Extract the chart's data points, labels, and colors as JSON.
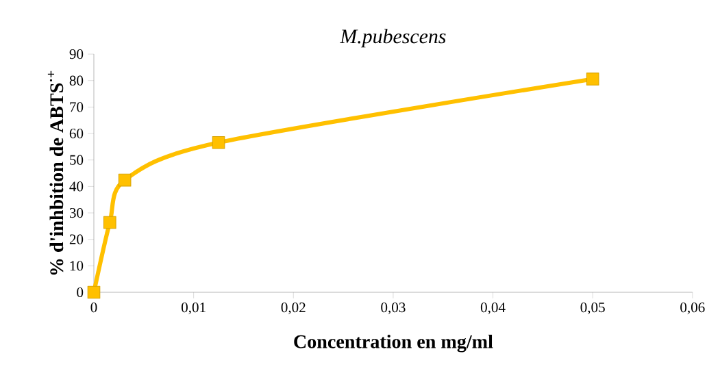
{
  "chart_data": {
    "type": "line",
    "title": "*M.pubescens*",
    "xlabel": "Concentration en mg/ml",
    "ylabel": "% d'inhbition de ABTS$^{·+}$",
    "x": [
      0,
      0.0016,
      0.0031,
      0.0125,
      0.05
    ],
    "series": [
      {
        "color": "#ffc000",
        "values": [
          0,
          26.4,
          42.4,
          56.6,
          80.6
        ]
      }
    ],
    "xlim": [
      0,
      0.06
    ],
    "xticks": [
      0,
      {
        "value": 0.01,
        "label": "0,01"
      },
      {
        "value": 0.02,
        "label": "0,02"
      },
      {
        "value": 0.03,
        "label": "0,03"
      },
      {
        "value": 0.04,
        "label": "0,04"
      },
      {
        "value": 0.05,
        "label": "0,05"
      },
      {
        "value": 0.06,
        "label": "0,06"
      }
    ],
    "ylim": [
      0,
      90
    ],
    "yticks": [
      0,
      10,
      20,
      30,
      40,
      50,
      60,
      70,
      80,
      90
    ],
    "marker": "square",
    "line_style": "solid",
    "grid": false
  }
}
